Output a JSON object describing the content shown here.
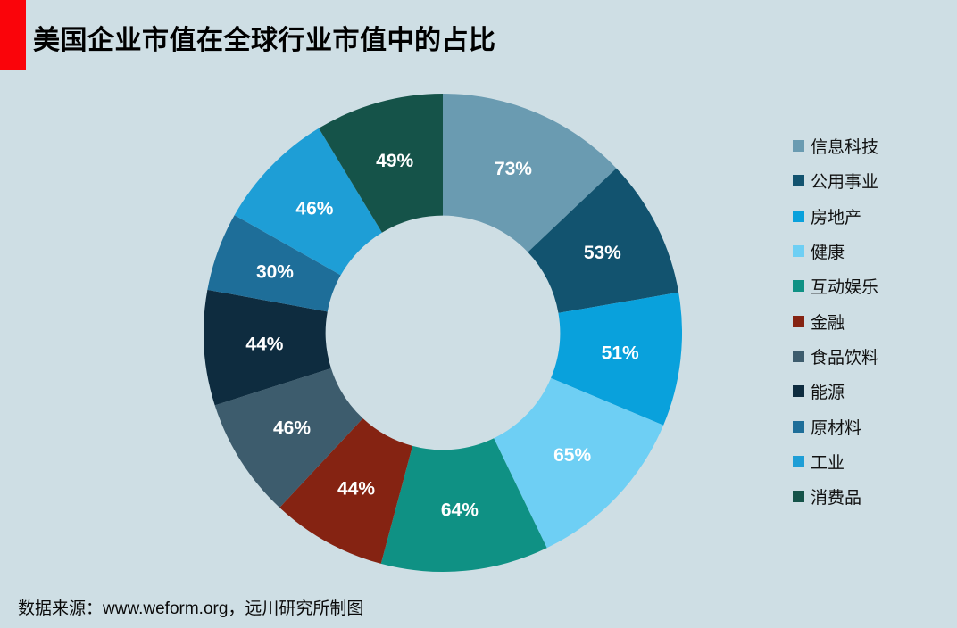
{
  "title": "美国企业市值在全球行业市值中的占比",
  "footer": "数据来源：www.weform.org，远川研究所制图",
  "colors": {
    "background": "#CEDEE4",
    "title_accent": "#FA040A",
    "title_text": "#000000",
    "label_text": "#FFFFFF"
  },
  "chart_data": {
    "type": "pie",
    "subtype": "donut",
    "title": "美国企业市值在全球行业市值中的占比",
    "direction": "clockwise",
    "start_angle_deg": 0,
    "inner_radius_ratio": 0.49,
    "legend_position": "right",
    "categories": [
      "信息科技",
      "公用事业",
      "房地产",
      "健康",
      "互动娱乐",
      "金融",
      "食品饮料",
      "能源",
      "原材料",
      "工业",
      "消费品"
    ],
    "values": [
      73,
      53,
      51,
      65,
      64,
      44,
      46,
      44,
      30,
      46,
      49
    ],
    "labels": [
      "73%",
      "53%",
      "51%",
      "65%",
      "64%",
      "44%",
      "46%",
      "44%",
      "30%",
      "46%",
      "49%"
    ],
    "colors": [
      "#6A9BB1",
      "#12536F",
      "#09A1DC",
      "#6ECFF4",
      "#0F9184",
      "#852312",
      "#3D5C6D",
      "#0E2C3F",
      "#1E6E99",
      "#1E9ED6",
      "#155349"
    ],
    "label_color": "#FFFFFF"
  }
}
